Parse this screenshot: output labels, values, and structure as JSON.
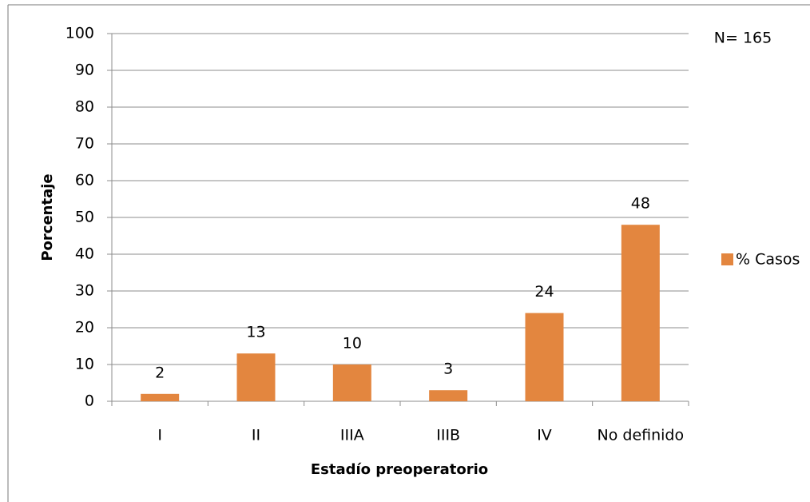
{
  "chart_data": {
    "type": "bar",
    "annotation": "N= 165",
    "xlabel": "Estadío preoperatorio",
    "ylabel": "Porcentaje",
    "categories": [
      "I",
      "II",
      "IIIA",
      "IIIB",
      "IV",
      "No definido"
    ],
    "series": [
      {
        "name": "% Casos",
        "color": "#e3863f",
        "values": [
          2,
          13,
          10,
          3,
          24,
          48
        ]
      }
    ],
    "ylim": [
      0,
      100
    ],
    "yticks": [
      0,
      10,
      20,
      30,
      40,
      50,
      60,
      70,
      80,
      90,
      100
    ],
    "grid": true,
    "legend": "right"
  }
}
